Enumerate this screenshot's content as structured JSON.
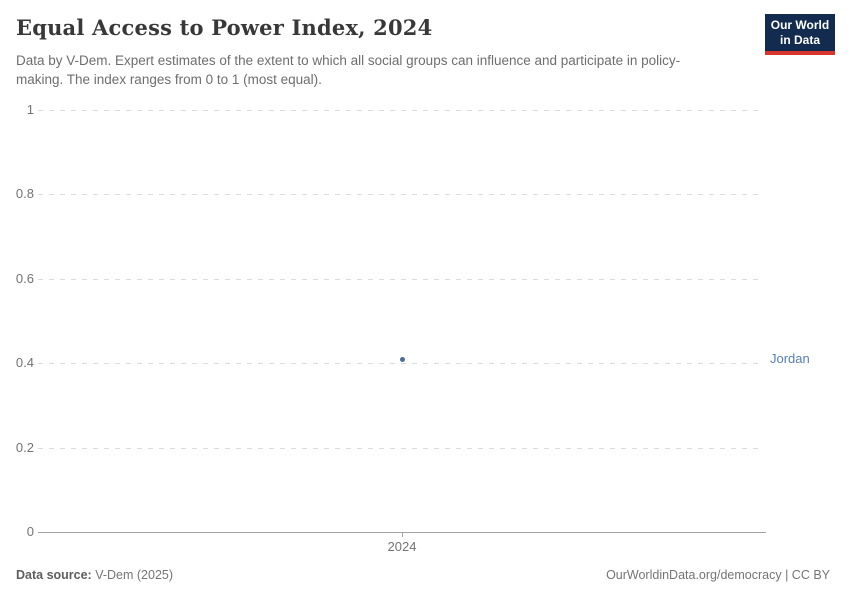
{
  "header": {
    "title": "Equal Access to Power Index, 2024",
    "subtitle": "Data by V-Dem. Expert estimates of the extent to which all social groups can influence and participate in policy-making. The index ranges from 0 to 1 (most equal).",
    "logo": {
      "line1": "Our World",
      "line2": "in Data",
      "bg_color": "#122b4e",
      "bar_color": "#d8352f"
    }
  },
  "chart_data": {
    "type": "scatter",
    "title": "Equal Access to Power Index, 2024",
    "x": [
      2024
    ],
    "xtick_labels": [
      "2024"
    ],
    "series": [
      {
        "name": "Jordan",
        "values": [
          0.41
        ],
        "color": "#4c6a9c"
      }
    ],
    "ylim": [
      0,
      1
    ],
    "yticks": [
      0,
      0.2,
      0.4,
      0.6,
      0.8,
      1
    ],
    "ytick_labels": [
      "0",
      "0.2",
      "0.4",
      "0.6",
      "0.8",
      "1"
    ],
    "grid": "horizontal-dashed",
    "gridline_color": "#dcdcdc",
    "axis_color": "#a3a3a3",
    "tick_label_color": "#737373",
    "entity_label": {
      "text": "Jordan",
      "color": "#577eb4"
    }
  },
  "footer": {
    "source_label": "Data source:",
    "source_value": " V-Dem (2025)",
    "credit": "OurWorldinData.org/democracy | CC BY"
  }
}
